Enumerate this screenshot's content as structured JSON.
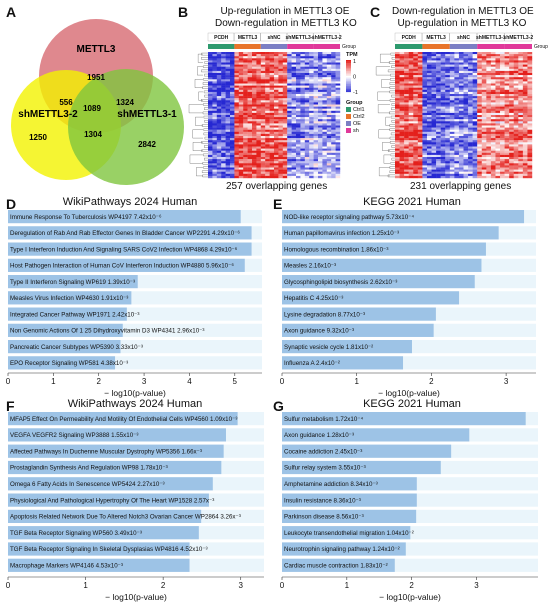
{
  "panels": {
    "a": {
      "letter": "A"
    },
    "b": {
      "letter": "B",
      "title_line1": "Up-regulation in METTL3 OE",
      "title_line2": "Down-regulation in METTL3 KO",
      "footer": "257 overlapping genes"
    },
    "c": {
      "letter": "C",
      "title_line1": "Down-regulation in METTL3 OE",
      "title_line2": "Up-regulation in METTL3 KO",
      "footer": "231 overlapping genes"
    },
    "d": {
      "letter": "D"
    },
    "e": {
      "letter": "E"
    },
    "f": {
      "letter": "F"
    },
    "g": {
      "letter": "G"
    }
  },
  "venn": {
    "sets": [
      {
        "name": "METTL3",
        "only": "1951",
        "color": "#d9737a"
      },
      {
        "name": "shMETTL3-2",
        "only": "1250",
        "color": "#f2f200"
      },
      {
        "name": "shMETTL3-1",
        "only": "2842",
        "color": "#7fc63e"
      }
    ],
    "m_sh2": "556",
    "m_sh1": "1324",
    "sh2_sh1": "1304",
    "all_three": "1089"
  },
  "heatmap": {
    "group_columns": [
      "PCDH",
      "METTL3",
      "shNC",
      "shMETTL3-1",
      "shMETTL3-2"
    ],
    "group_colors": [
      "#2e9a6e",
      "#e8742a",
      "#7b7fc4",
      "#e0389a",
      "#e0389a"
    ],
    "group_row_label": "Group",
    "legend_title": "TPM",
    "legend_ticks": [
      "1",
      "0",
      "-1"
    ],
    "legend_group_title": "Group",
    "legend_groups": [
      {
        "name": "Ctrl1",
        "color": "#2e9a6e"
      },
      {
        "name": "Ctrl2",
        "color": "#e8742a"
      },
      {
        "name": "OE",
        "color": "#7b7fc4"
      },
      {
        "name": "sh",
        "color": "#e0389a"
      }
    ]
  },
  "bar_color": "#9dc3e6",
  "chart_data": [
    {
      "id": "D",
      "type": "bar",
      "orientation": "horizontal",
      "title": "WikiPathways 2024 Human",
      "xlabel": "− log10(p-value)",
      "xlim": [
        0,
        5.6
      ],
      "xticks": [
        0,
        1,
        2,
        3,
        4,
        5
      ],
      "categories": [
        "Immune Response To Tuberculosis WP4197 7.42x10⁻⁶",
        "Deregulation of Rab And Rab Effector Genes In Bladder Cancer WP2291 4.29x10⁻⁶",
        "Type I Interferon Induction And Signaling SARS CoV2 Infection WP4868 4.29x10⁻⁶",
        "Host Pathogen Interaction of Human CoV Interferon Induction WP4880 5.96x10⁻⁶",
        "Type II Interferon Signaling WP619 1.39x10⁻³",
        "Measles Virus Infection WP4630 1.91x10⁻³",
        "Integrated Cancer Pathway WP1971 2.42x10⁻³",
        "Non Genomic Actions Of 1 25 Dihydroxyvitamin D3 WP4341 2.96x10⁻³",
        "Pancreatic Cancer Subtypes WP5390 3.33x10⁻³",
        "EPO Receptor Signaling WP581 4.38x10⁻³"
      ],
      "values": [
        5.13,
        5.37,
        5.37,
        5.22,
        2.86,
        2.72,
        2.62,
        2.53,
        2.48,
        2.36
      ]
    },
    {
      "id": "E",
      "type": "bar",
      "orientation": "horizontal",
      "title": "KEGG 2021 Human",
      "xlabel": "− log10(p-value)",
      "xlim": [
        0,
        3.4
      ],
      "xticks": [
        0,
        1,
        2,
        3
      ],
      "categories": [
        "NOD-like receptor signaling pathway 5.73x10⁻⁴",
        "Human papillomavirus infection 1.25x10⁻³",
        "Homologous recombination 1.86x10⁻³",
        "Measles 2.16x10⁻³",
        "Glycosphingolipid biosynthesis 2.62x10⁻³",
        "Hepatitis C 4.25x10⁻³",
        "Lysine degradation 8.77x10⁻³",
        "Axon guidance 9.32x10⁻³",
        "Synaptic vesicle cycle 1.81x10⁻²",
        "Influenza A 2.4x10⁻²"
      ],
      "values": [
        3.24,
        2.9,
        2.73,
        2.67,
        2.58,
        2.37,
        2.06,
        2.03,
        1.74,
        1.62
      ]
    },
    {
      "id": "F",
      "type": "bar",
      "orientation": "horizontal",
      "title": "WikiPathways 2024 Human",
      "xlabel": "− log10(p-value)",
      "xlim": [
        0,
        3.3
      ],
      "xticks": [
        0,
        1,
        2,
        3
      ],
      "categories": [
        "MFAP5 Effect On Permeability And Motility Of Endothelial Cells WP4560 1.09x10⁻³",
        "VEGFA VEGFR2 Signaling WP3888 1.55x10⁻³",
        "Affected Pathways In Duchenne Muscular Dystrophy WP5356 1.66x⁻³",
        "Prostaglandin Synthesis And Regulation WP98 1.78x10⁻³",
        "Omega 6 Fatty Acids In Senescence WP5424 2.27x10⁻³",
        "Physiological And Pathological Hypertrophy Of The Heart WP1528 2.57x⁻³",
        "Apoptosis Related Network Due To Altered Notch3 Ovarian Cancer WP2864 3.26x⁻³",
        "TGF Beta Receptor Signaling WP560 3.49x10⁻³",
        "TGF Beta Receptor Signaling In Skeletal Dysplasias WP4816 4.52x10⁻³",
        "Macrophage Markers WP4146 4.53x10⁻³"
      ],
      "values": [
        2.96,
        2.81,
        2.78,
        2.75,
        2.64,
        2.59,
        2.49,
        2.46,
        2.34,
        2.34
      ]
    },
    {
      "id": "G",
      "type": "bar",
      "orientation": "horizontal",
      "title": "KEGG 2021 Human",
      "xlabel": "− log10(p-value)",
      "xlim": [
        0,
        3.95
      ],
      "xticks": [
        0,
        1,
        2,
        3
      ],
      "categories": [
        "Sulfur metabolism 1.72x10⁻⁴",
        "Axon guidance 1.28x10⁻³",
        "Cocaine addiction 2.45x10⁻³",
        "Sulfur relay system 3.55x10⁻³",
        "Amphetamine addiction 8.34x10⁻³",
        "Insulin resistance 8.36x10⁻³",
        "Parkinson disease 8.56x10⁻³",
        "Leukocyte transendothelial migration 1.04x10⁻²",
        "Neurotrophin signaling pathway 1.24x10⁻²",
        "Cardiac muscle contraction 1.83x10⁻²"
      ],
      "values": [
        3.76,
        2.89,
        2.61,
        2.45,
        2.08,
        2.08,
        2.07,
        1.98,
        1.91,
        1.74
      ]
    }
  ]
}
